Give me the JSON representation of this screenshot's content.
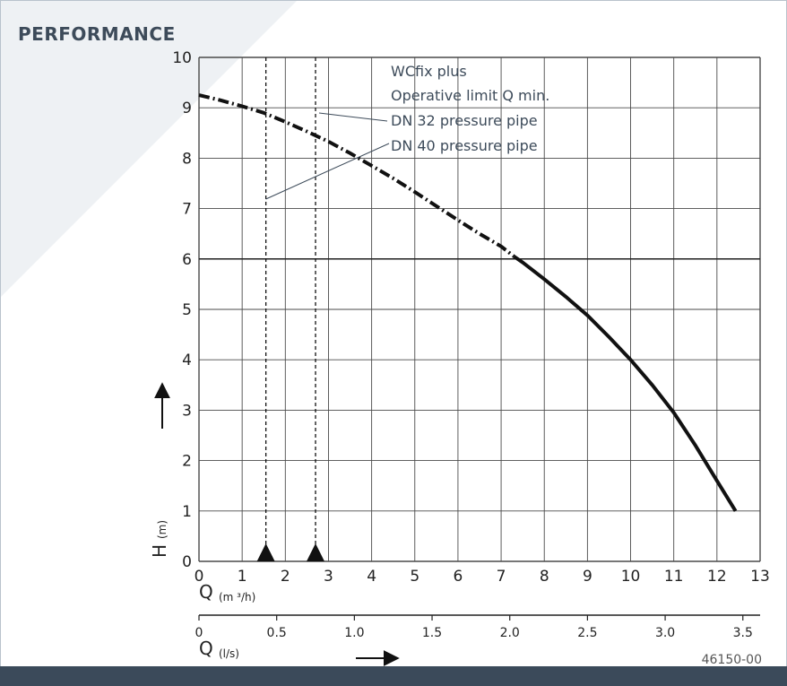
{
  "page_title": "PERFORMANCE",
  "colors": {
    "grid": "#4a4a4a",
    "curve": "#111111",
    "annotation_text": "#3d4b5a",
    "footer_bar": "#3b4a5a",
    "corner_shade": "#eef1f4"
  },
  "legend": {
    "line1": "WCfix plus",
    "line2": "Operative limit Q min.",
    "line3": "DN 32 pressure pipe",
    "line4": "DN 40 pressure pipe"
  },
  "axis_labels": {
    "y_symbol": "H",
    "y_unit": "(m)",
    "x_symbol": "Q",
    "x_unit": "(m ³/h)",
    "x2_symbol": "Q",
    "x2_unit": "(l/s)"
  },
  "drawing_number": "46150-00",
  "chart_data": {
    "type": "line",
    "title": "PERFORMANCE",
    "xlabel": "Q (m ³/h)",
    "ylabel": "H (m)",
    "xlim": [
      0,
      13
    ],
    "ylim": [
      0,
      10
    ],
    "x_ticks": [
      "0",
      "1",
      "2",
      "3",
      "4",
      "5",
      "6",
      "7",
      "8",
      "9",
      "10",
      "11",
      "12",
      "13"
    ],
    "y_ticks": [
      "0",
      "1",
      "2",
      "3",
      "4",
      "5",
      "6",
      "7",
      "8",
      "9",
      "10"
    ],
    "secondary_x_axis": {
      "label": "Q (l/s)",
      "range": [
        0,
        3.611
      ],
      "ticks": [
        {
          "value": 0,
          "label": "0"
        },
        {
          "value": 0.5,
          "label": "0.5"
        },
        {
          "value": 1.0,
          "label": "1.0"
        },
        {
          "value": 1.5,
          "label": "1.5"
        },
        {
          "value": 2.0,
          "label": "2.0"
        },
        {
          "value": 2.5,
          "label": "2.5"
        },
        {
          "value": 3.0,
          "label": "3.0"
        },
        {
          "value": 3.5,
          "label": "3.5"
        }
      ]
    },
    "grid": true,
    "series": [
      {
        "name": "WCfix plus",
        "points": [
          [
            0,
            9.25
          ],
          [
            0.5,
            9.15
          ],
          [
            1,
            9.03
          ],
          [
            1.5,
            8.9
          ],
          [
            2,
            8.72
          ],
          [
            2.5,
            8.53
          ],
          [
            3,
            8.33
          ],
          [
            3.5,
            8.1
          ],
          [
            4,
            7.85
          ],
          [
            4.5,
            7.6
          ],
          [
            5,
            7.33
          ],
          [
            5.5,
            7.05
          ],
          [
            6,
            6.77
          ],
          [
            6.5,
            6.5
          ],
          [
            7,
            6.25
          ],
          [
            7.3,
            6.05
          ],
          [
            7.5,
            5.93
          ],
          [
            8,
            5.6
          ],
          [
            8.5,
            5.25
          ],
          [
            9,
            4.88
          ],
          [
            9.5,
            4.45
          ],
          [
            10,
            4.0
          ],
          [
            10.5,
            3.5
          ],
          [
            11,
            2.95
          ],
          [
            11.5,
            2.3
          ],
          [
            12,
            1.6
          ],
          [
            12.43,
            1.0
          ]
        ],
        "dashed_until_x": 7.3
      }
    ],
    "operative_limits": [
      {
        "name": "DN 32 pressure pipe",
        "q": 1.55
      },
      {
        "name": "DN 40 pressure pipe",
        "q": 2.7
      }
    ]
  }
}
